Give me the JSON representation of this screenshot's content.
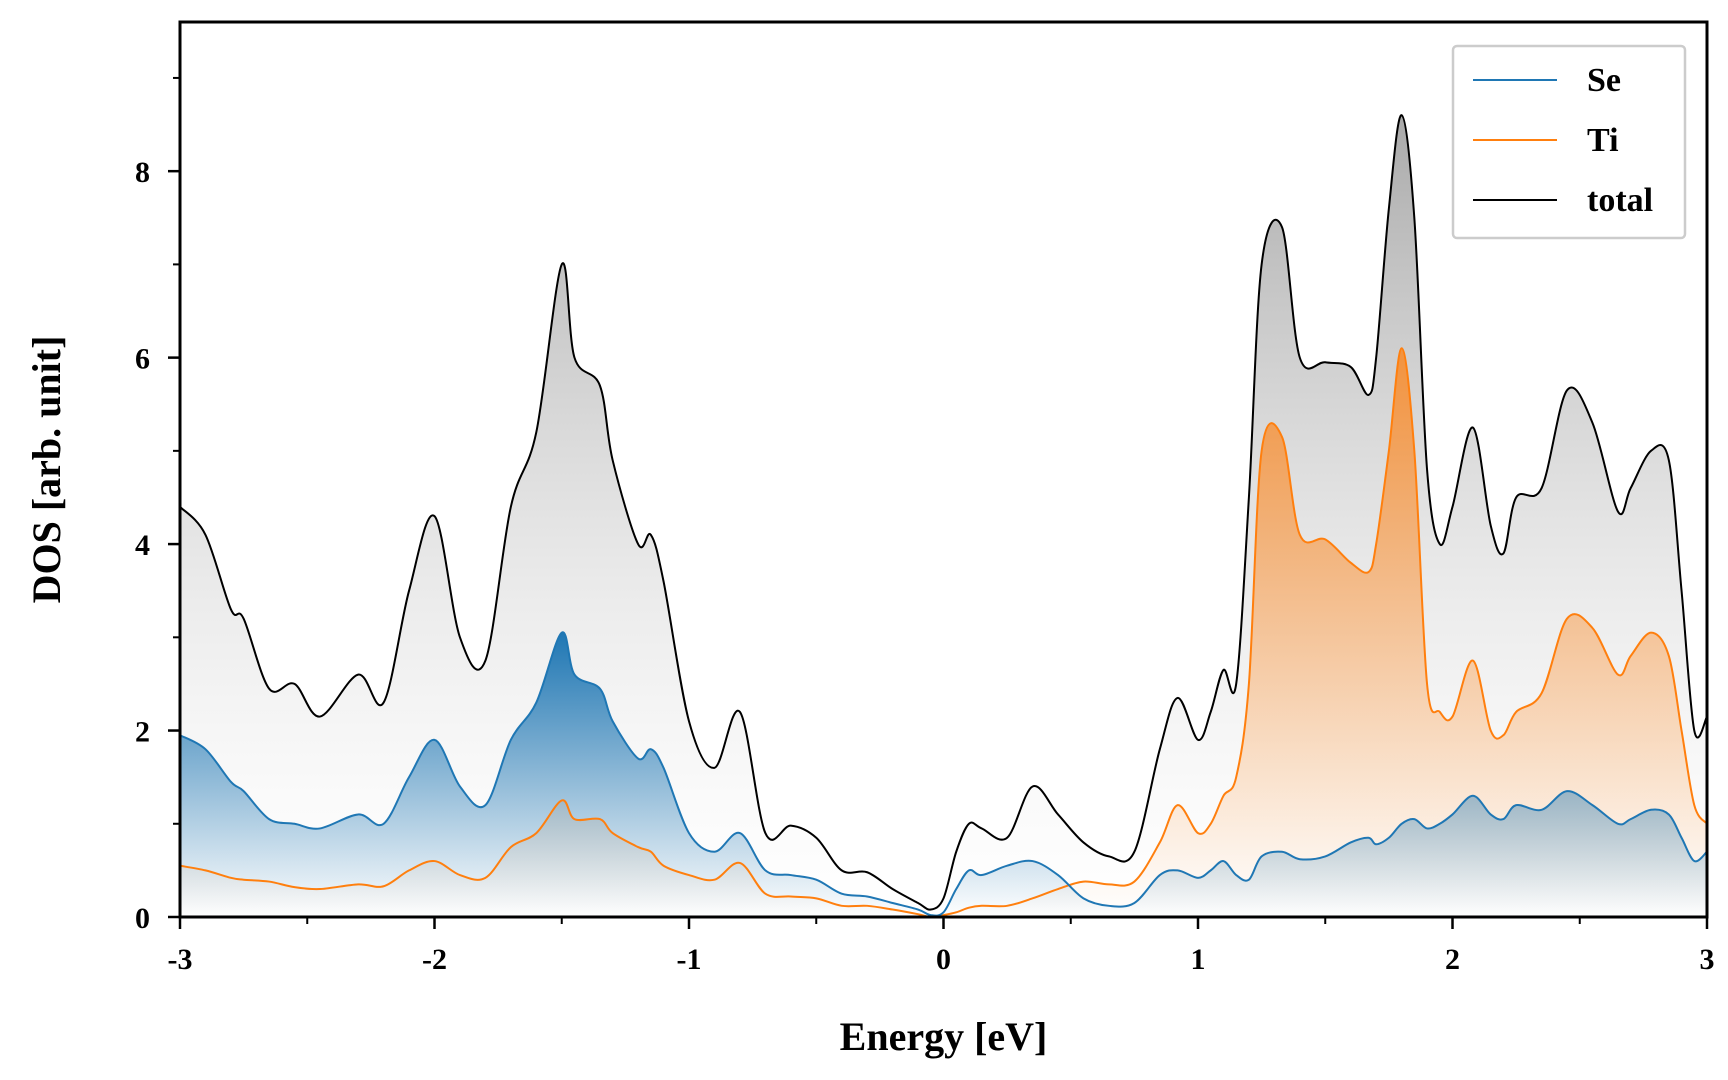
{
  "chart_data": {
    "type": "area",
    "title": "",
    "xlabel": "Energy [eV]",
    "ylabel": "DOS [arb. unit]",
    "xlim": [
      -3,
      3
    ],
    "ylim": [
      0,
      9.6
    ],
    "xticks": [
      -3,
      -2,
      -1,
      0,
      1,
      2,
      3
    ],
    "xtick_labels": [
      "-3",
      "-2",
      "-1",
      "0",
      "1",
      "2",
      "3"
    ],
    "yticks": [
      0,
      2,
      4,
      6,
      8
    ],
    "ytick_labels": [
      "0",
      "2",
      "4",
      "6",
      "8"
    ],
    "grid": false,
    "legend_position": "top-right",
    "x": [
      -3.0,
      -2.9,
      -2.8,
      -2.75,
      -2.65,
      -2.55,
      -2.45,
      -2.3,
      -2.2,
      -2.1,
      -2.0,
      -1.9,
      -1.8,
      -1.7,
      -1.6,
      -1.5,
      -1.45,
      -1.35,
      -1.3,
      -1.2,
      -1.15,
      -1.1,
      -1.0,
      -0.9,
      -0.8,
      -0.7,
      -0.6,
      -0.5,
      -0.4,
      -0.3,
      -0.2,
      -0.1,
      -0.05,
      0.0,
      0.05,
      0.1,
      0.15,
      0.25,
      0.35,
      0.45,
      0.55,
      0.65,
      0.75,
      0.85,
      0.92,
      1.0,
      1.05,
      1.1,
      1.15,
      1.2,
      1.25,
      1.33,
      1.4,
      1.5,
      1.6,
      1.67,
      1.7,
      1.75,
      1.8,
      1.85,
      1.9,
      1.95,
      2.0,
      2.08,
      2.15,
      2.2,
      2.25,
      2.35,
      2.45,
      2.55,
      2.65,
      2.7,
      2.78,
      2.85,
      2.9,
      2.95,
      3.0
    ],
    "series": [
      {
        "name": "Se",
        "color": "#1f77b4",
        "values": [
          1.95,
          1.8,
          1.45,
          1.35,
          1.05,
          1.0,
          0.95,
          1.1,
          1.0,
          1.5,
          1.9,
          1.4,
          1.2,
          1.9,
          2.3,
          3.05,
          2.6,
          2.45,
          2.1,
          1.7,
          1.8,
          1.6,
          0.9,
          0.7,
          0.9,
          0.5,
          0.45,
          0.4,
          0.25,
          0.22,
          0.15,
          0.08,
          0.02,
          0.05,
          0.3,
          0.5,
          0.45,
          0.55,
          0.6,
          0.45,
          0.2,
          0.12,
          0.15,
          0.45,
          0.5,
          0.42,
          0.5,
          0.6,
          0.45,
          0.4,
          0.65,
          0.7,
          0.62,
          0.65,
          0.8,
          0.85,
          0.78,
          0.85,
          1.0,
          1.05,
          0.95,
          1.0,
          1.1,
          1.3,
          1.1,
          1.05,
          1.2,
          1.15,
          1.35,
          1.2,
          1.0,
          1.05,
          1.15,
          1.1,
          0.85,
          0.6,
          0.7
        ]
      },
      {
        "name": "Ti",
        "color": "#ff7f0e",
        "values": [
          0.55,
          0.5,
          0.42,
          0.4,
          0.38,
          0.32,
          0.3,
          0.35,
          0.33,
          0.5,
          0.6,
          0.45,
          0.42,
          0.75,
          0.9,
          1.25,
          1.05,
          1.05,
          0.9,
          0.75,
          0.7,
          0.55,
          0.45,
          0.4,
          0.58,
          0.25,
          0.22,
          0.2,
          0.12,
          0.12,
          0.08,
          0.03,
          0.0,
          0.02,
          0.05,
          0.1,
          0.12,
          0.12,
          0.2,
          0.3,
          0.38,
          0.35,
          0.38,
          0.8,
          1.2,
          0.9,
          1.0,
          1.3,
          1.5,
          2.5,
          5.0,
          5.15,
          4.1,
          4.05,
          3.8,
          3.7,
          4.0,
          5.0,
          6.1,
          5.0,
          2.5,
          2.2,
          2.15,
          2.75,
          2.0,
          1.95,
          2.2,
          2.4,
          3.2,
          3.1,
          2.6,
          2.8,
          3.05,
          2.8,
          2.0,
          1.2,
          1.0
        ]
      },
      {
        "name": "total",
        "color": "#000000",
        "values": [
          4.4,
          4.1,
          3.3,
          3.2,
          2.45,
          2.5,
          2.15,
          2.6,
          2.3,
          3.5,
          4.3,
          3.0,
          2.75,
          4.4,
          5.2,
          7.0,
          6.0,
          5.7,
          4.9,
          4.0,
          4.1,
          3.6,
          2.1,
          1.6,
          2.2,
          0.9,
          0.98,
          0.85,
          0.5,
          0.48,
          0.3,
          0.15,
          0.08,
          0.2,
          0.7,
          1.0,
          0.95,
          0.85,
          1.4,
          1.1,
          0.8,
          0.65,
          0.7,
          1.8,
          2.35,
          1.9,
          2.2,
          2.65,
          2.5,
          4.5,
          7.0,
          7.4,
          6.0,
          5.95,
          5.9,
          5.6,
          6.0,
          7.6,
          8.6,
          7.5,
          4.8,
          4.0,
          4.4,
          5.25,
          4.2,
          3.9,
          4.5,
          4.6,
          5.65,
          5.3,
          4.35,
          4.6,
          5.0,
          4.9,
          3.5,
          2.0,
          2.15
        ]
      }
    ]
  }
}
